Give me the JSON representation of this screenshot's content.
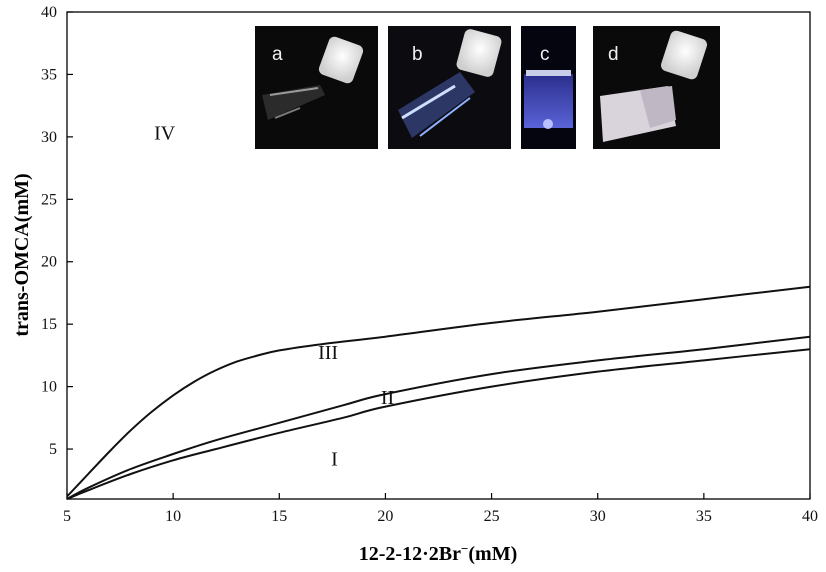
{
  "chart_data": {
    "type": "line",
    "title": "",
    "xlabel_main": "12-2-12·2Br",
    "xlabel_sup": "−",
    "xlabel_unit": "(mM)",
    "ylabel": "trans-OMCA(mM)",
    "xlim": [
      5,
      40
    ],
    "ylim": [
      1,
      40
    ],
    "xticks": [
      5,
      10,
      15,
      20,
      25,
      30,
      35,
      40
    ],
    "yticks": [
      5,
      10,
      15,
      20,
      25,
      30,
      35,
      40
    ],
    "grid": false,
    "series": [
      {
        "x": [
          5,
          6,
          7,
          8,
          9,
          10,
          11,
          12,
          13,
          14,
          15,
          17,
          20,
          25,
          30,
          35,
          40
        ],
        "y": [
          1.2,
          3.0,
          4.8,
          6.5,
          8.0,
          9.3,
          10.4,
          11.3,
          12.0,
          12.5,
          12.9,
          13.4,
          14.0,
          15.1,
          16.0,
          17.0,
          18.0
        ]
      },
      {
        "x": [
          5,
          6,
          8,
          10,
          12,
          15,
          18,
          20,
          25,
          30,
          35,
          40
        ],
        "y": [
          1.0,
          1.9,
          3.4,
          4.6,
          5.7,
          7.1,
          8.5,
          9.4,
          11.0,
          12.1,
          13.0,
          14.0
        ]
      },
      {
        "x": [
          5,
          6,
          8,
          10,
          12,
          15,
          18,
          20,
          25,
          30,
          35,
          40
        ],
        "y": [
          1.0,
          1.7,
          3.0,
          4.1,
          5.0,
          6.3,
          7.5,
          8.4,
          10.0,
          11.2,
          12.1,
          13.0
        ]
      }
    ],
    "annotations": [
      {
        "text": "IV",
        "x": 9.6,
        "y": 29.8
      },
      {
        "text": "III",
        "x": 17.3,
        "y": 12.2
      },
      {
        "text": "II",
        "x": 20.1,
        "y": 8.6
      },
      {
        "text": "I",
        "x": 17.6,
        "y": 3.7
      }
    ]
  },
  "insets": [
    {
      "letter": "a"
    },
    {
      "letter": "b"
    },
    {
      "letter": "c"
    },
    {
      "letter": "d"
    }
  ]
}
